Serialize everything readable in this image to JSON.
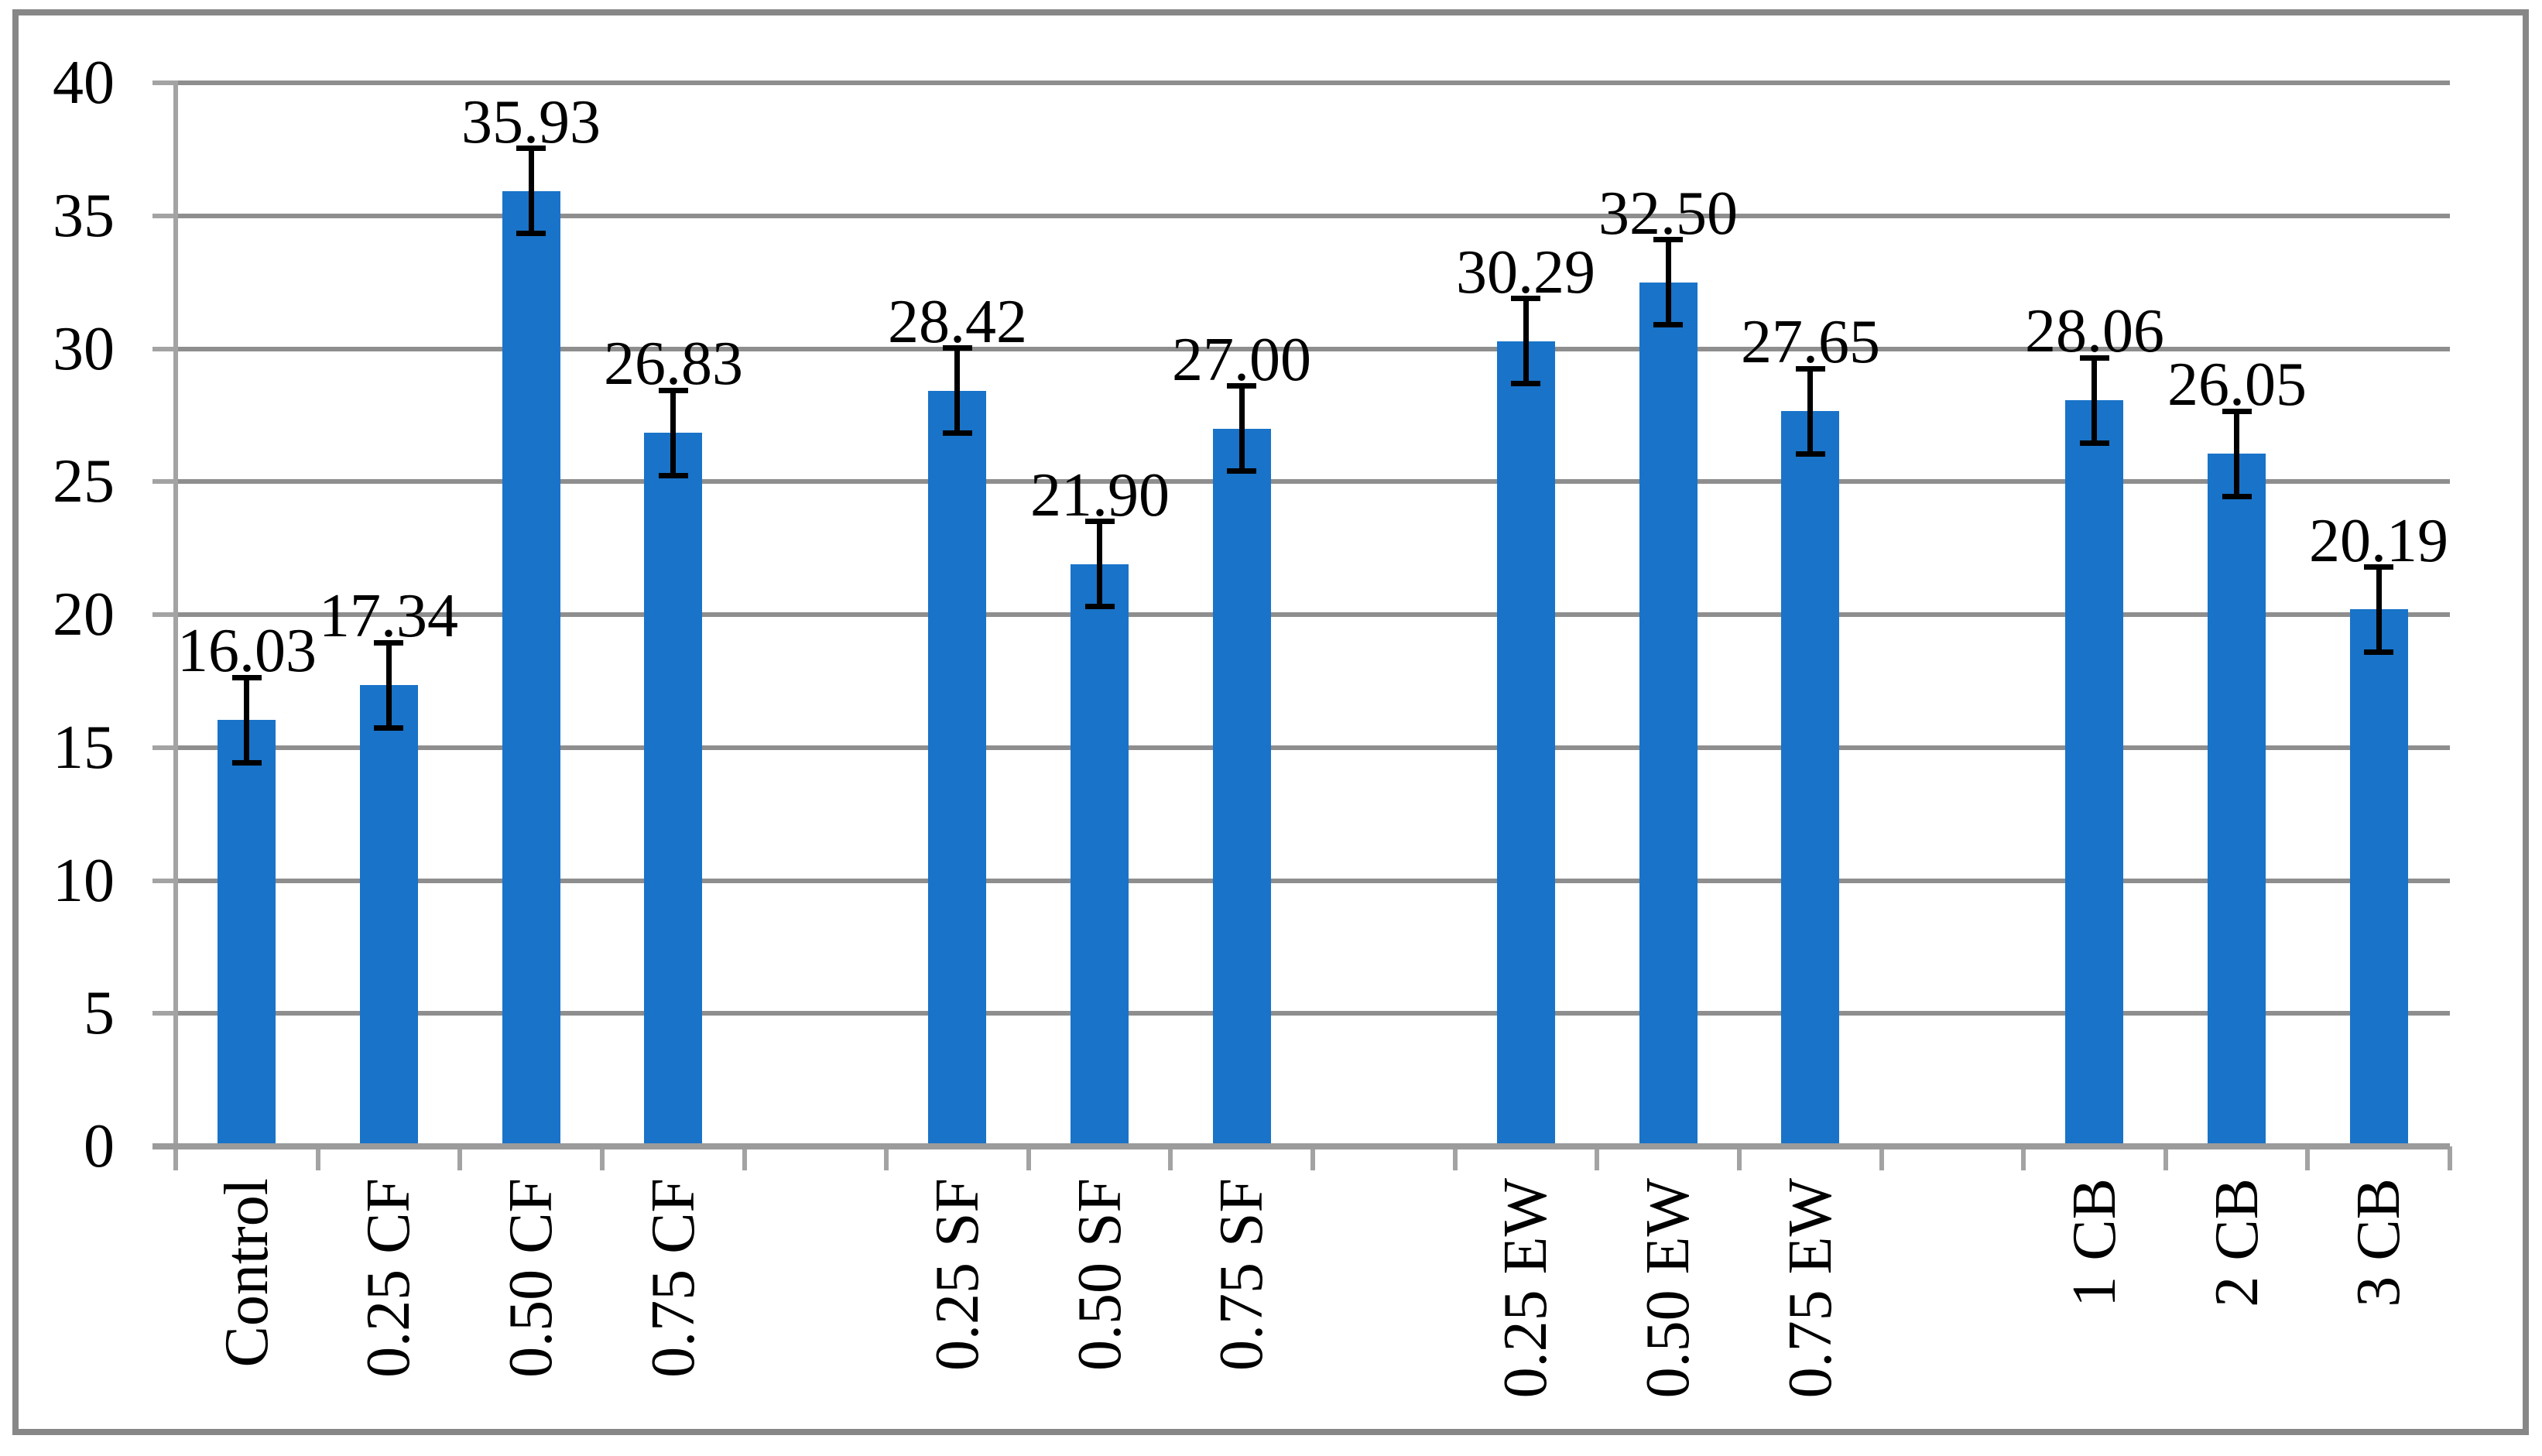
{
  "chart_data": {
    "type": "bar",
    "title": "",
    "xlabel": "",
    "ylabel": "",
    "categories": [
      "Control",
      "0.25 CF",
      "0.50 CF",
      "0.75 CF",
      "",
      "0.25 SF",
      "0.50 SF",
      "0.75 SF",
      "",
      "0.25 EW",
      "0.50 EW",
      "0.75 EW",
      "",
      "1 CB",
      "2 CB",
      "3 CB"
    ],
    "values": [
      16.03,
      17.34,
      35.93,
      26.83,
      null,
      28.42,
      21.9,
      27.0,
      null,
      30.29,
      32.5,
      27.65,
      null,
      28.06,
      26.05,
      20.19
    ],
    "data_labels": [
      "16.03",
      "17.34",
      "35.93",
      "26.83",
      "",
      "28.42",
      "21.90",
      "27.00",
      "",
      "30.29",
      "32.50",
      "27.65",
      "",
      "28.06",
      "26.05",
      "20.19"
    ],
    "error_bar_plus_minus": 1.6,
    "groups": [
      {
        "name": "Control",
        "members": [
          "Control"
        ]
      },
      {
        "name": "CF",
        "members": [
          "0.25 CF",
          "0.50 CF",
          "0.75 CF"
        ]
      },
      {
        "name": "SF",
        "members": [
          "0.25 SF",
          "0.50 SF",
          "0.75 SF"
        ]
      },
      {
        "name": "EW",
        "members": [
          "0.25 EW",
          "0.50 EW",
          "0.75 EW"
        ]
      },
      {
        "name": "CB",
        "members": [
          "1 CB",
          "2 CB",
          "3 CB"
        ]
      }
    ],
    "ylim": [
      0,
      40
    ],
    "y_ticks": [
      "0",
      "5",
      "10",
      "15",
      "20",
      "25",
      "30",
      "35",
      "40"
    ],
    "y_tick_values": [
      0,
      5,
      10,
      15,
      20,
      25,
      30,
      35,
      40
    ],
    "grid": true,
    "legend_position": "none",
    "colors": {
      "bar": "#1973C8",
      "gridline": "#8E8E8E",
      "axis": "#A3A3A3",
      "baseline": "#9B9B9B",
      "error_bar": "#000000",
      "chart_border": "#878787",
      "background": "#FFFFFF",
      "text": "#000000"
    }
  }
}
